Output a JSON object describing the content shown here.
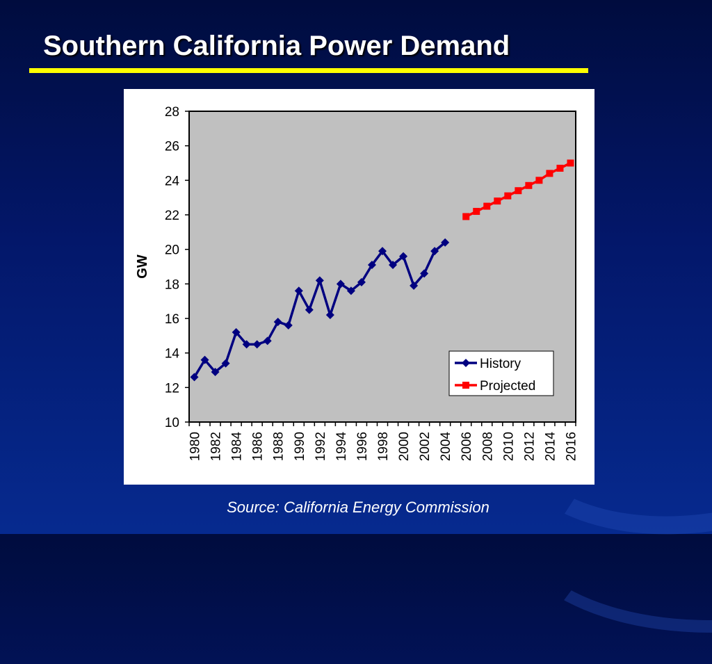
{
  "slide": {
    "title": "Southern California Power Demand",
    "source": "Source: California Energy Commission"
  },
  "colors": {
    "background": "#03176a",
    "title_rule": "#ffff00",
    "plot_area": "#c0c0c0",
    "history": "#000080",
    "projected": "#ff0000"
  },
  "chart_data": {
    "type": "line",
    "title": "",
    "xlabel": "",
    "ylabel": "GW",
    "ylim": [
      10,
      28
    ],
    "y_ticks": [
      "10",
      "12",
      "14",
      "16",
      "18",
      "20",
      "22",
      "24",
      "26",
      "28"
    ],
    "x_tick_labels": [
      "1980",
      "1982",
      "1984",
      "1986",
      "1988",
      "1990",
      "1992",
      "1994",
      "1996",
      "1998",
      "2000",
      "2002",
      "2004",
      "2006",
      "2008",
      "2010",
      "2012",
      "2014",
      "2016"
    ],
    "xlim": [
      1980,
      2016
    ],
    "grid": false,
    "legend_position": "lower-right",
    "series": [
      {
        "name": "History",
        "marker": "diamond",
        "color": "#000080",
        "x": [
          1980,
          1981,
          1982,
          1983,
          1984,
          1985,
          1986,
          1987,
          1988,
          1989,
          1990,
          1991,
          1992,
          1993,
          1994,
          1995,
          1996,
          1997,
          1998,
          1999,
          2000,
          2001,
          2002,
          2003,
          2004
        ],
        "y": [
          12.6,
          13.6,
          12.9,
          13.4,
          15.2,
          14.5,
          14.5,
          14.7,
          15.8,
          15.6,
          17.6,
          16.5,
          18.2,
          16.2,
          18.0,
          17.6,
          18.1,
          19.1,
          19.9,
          19.1,
          19.6,
          17.9,
          18.6,
          19.9,
          20.4
        ]
      },
      {
        "name": "Projected",
        "marker": "square",
        "color": "#ff0000",
        "x": [
          2006,
          2007,
          2008,
          2009,
          2010,
          2011,
          2012,
          2013,
          2014,
          2015,
          2016
        ],
        "y": [
          21.9,
          22.2,
          22.5,
          22.8,
          23.1,
          23.4,
          23.7,
          24.0,
          24.4,
          24.7,
          25.0
        ]
      }
    ]
  }
}
